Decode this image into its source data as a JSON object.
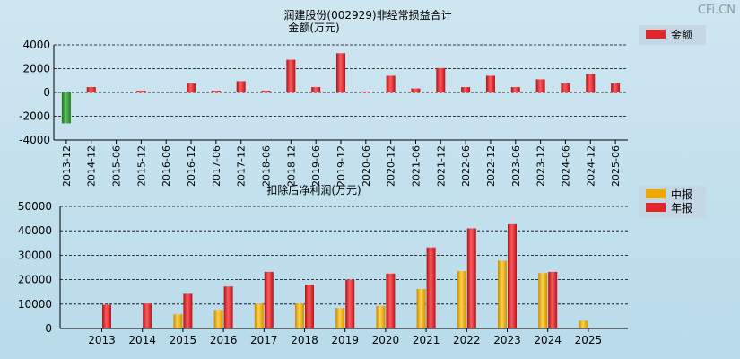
{
  "watermark": "CFi.CN",
  "colors": {
    "positive": "#e0262b",
    "negative": "#3a9a3a",
    "interim": "#f0a800",
    "annual": "#e0262b",
    "legend_bg": "#c5d7e2"
  },
  "chart_data": [
    {
      "type": "bar",
      "title": "润建股份(002929)非经常损益合计",
      "subtitle": "金额(万元)",
      "legend": [
        "金额"
      ],
      "ylim": [
        -4000,
        4000
      ],
      "yticks": [
        4000,
        2000,
        0,
        -2000,
        -4000
      ],
      "grid": true,
      "legend_position": "top-right",
      "categories": [
        "2013-12",
        "2014-12",
        "2015-06",
        "2015-12",
        "2016-06",
        "2016-12",
        "2017-06",
        "2017-12",
        "2018-06",
        "2018-12",
        "2019-06",
        "2019-12",
        "2020-06",
        "2020-12",
        "2021-06",
        "2021-12",
        "2022-06",
        "2022-12",
        "2023-06",
        "2023-12",
        "2024-06",
        "2024-12",
        "2025-06"
      ],
      "values": [
        -2600,
        450,
        0,
        150,
        0,
        750,
        150,
        950,
        150,
        2750,
        450,
        3300,
        80,
        1400,
        330,
        2050,
        450,
        1400,
        450,
        1100,
        750,
        1550,
        750
      ]
    },
    {
      "type": "bar",
      "title": "扣除后净利润(万元)",
      "legend": [
        "中报",
        "年报"
      ],
      "ylim": [
        0,
        50000
      ],
      "yticks": [
        50000,
        40000,
        30000,
        20000,
        10000,
        0
      ],
      "grid": true,
      "legend_position": "top-right",
      "categories": [
        "2013",
        "2014",
        "2015",
        "2016",
        "2017",
        "2018",
        "2019",
        "2020",
        "2021",
        "2022",
        "2023",
        "2024",
        "2025"
      ],
      "series": [
        {
          "name": "中报",
          "values": [
            null,
            null,
            5800,
            7600,
            10200,
            10300,
            8400,
            9200,
            16200,
            23500,
            27800,
            22700,
            3200
          ]
        },
        {
          "name": "年报",
          "values": [
            9700,
            10200,
            14200,
            17200,
            23200,
            18000,
            20000,
            22500,
            33200,
            41000,
            42700,
            23200,
            null
          ]
        }
      ]
    }
  ]
}
